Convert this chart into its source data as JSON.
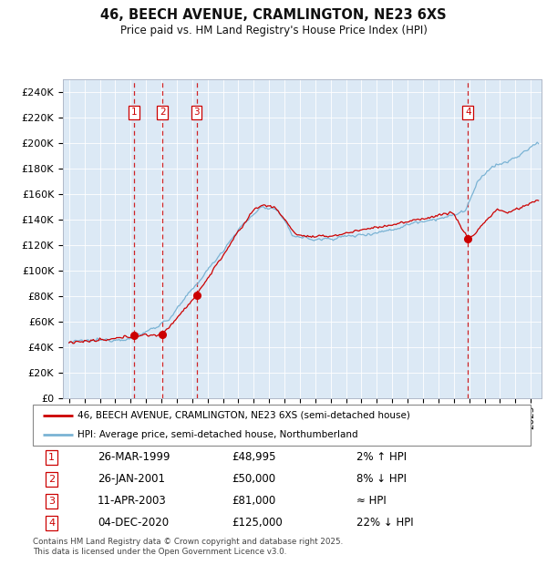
{
  "title": "46, BEECH AVENUE, CRAMLINGTON, NE23 6XS",
  "subtitle": "Price paid vs. HM Land Registry's House Price Index (HPI)",
  "ylabel_vals": [
    "£0",
    "£20K",
    "£40K",
    "£60K",
    "£80K",
    "£100K",
    "£120K",
    "£140K",
    "£160K",
    "£180K",
    "£200K",
    "£220K",
    "£240K"
  ],
  "ylim": [
    0,
    250000
  ],
  "yticks": [
    0,
    20000,
    40000,
    60000,
    80000,
    100000,
    120000,
    140000,
    160000,
    180000,
    200000,
    220000,
    240000
  ],
  "bg_color": "#dce9f5",
  "line_color_hpi": "#7ab3d4",
  "line_color_prop": "#cc0000",
  "sale_marker_color": "#cc0000",
  "dashed_line_color": "#cc0000",
  "transactions": [
    {
      "num": 1,
      "date_str": "26-MAR-1999",
      "price": 48995,
      "year": 1999.23
    },
    {
      "num": 2,
      "date_str": "26-JAN-2001",
      "price": 50000,
      "year": 2001.07
    },
    {
      "num": 3,
      "date_str": "11-APR-2003",
      "price": 81000,
      "year": 2003.28
    },
    {
      "num": 4,
      "date_str": "04-DEC-2020",
      "price": 125000,
      "year": 2020.92
    }
  ],
  "legend_prop": "46, BEECH AVENUE, CRAMLINGTON, NE23 6XS (semi-detached house)",
  "legend_hpi": "HPI: Average price, semi-detached house, Northumberland",
  "footer": "Contains HM Land Registry data © Crown copyright and database right 2025.\nThis data is licensed under the Open Government Licence v3.0.",
  "table_rows": [
    [
      "1",
      "26-MAR-1999",
      "£48,995",
      "2% ↑ HPI"
    ],
    [
      "2",
      "26-JAN-2001",
      "£50,000",
      "8% ↓ HPI"
    ],
    [
      "3",
      "11-APR-2003",
      "£81,000",
      "≈ HPI"
    ],
    [
      "4",
      "04-DEC-2020",
      "£125,000",
      "22% ↓ HPI"
    ]
  ],
  "xlim_left": 1994.6,
  "xlim_right": 2025.7
}
